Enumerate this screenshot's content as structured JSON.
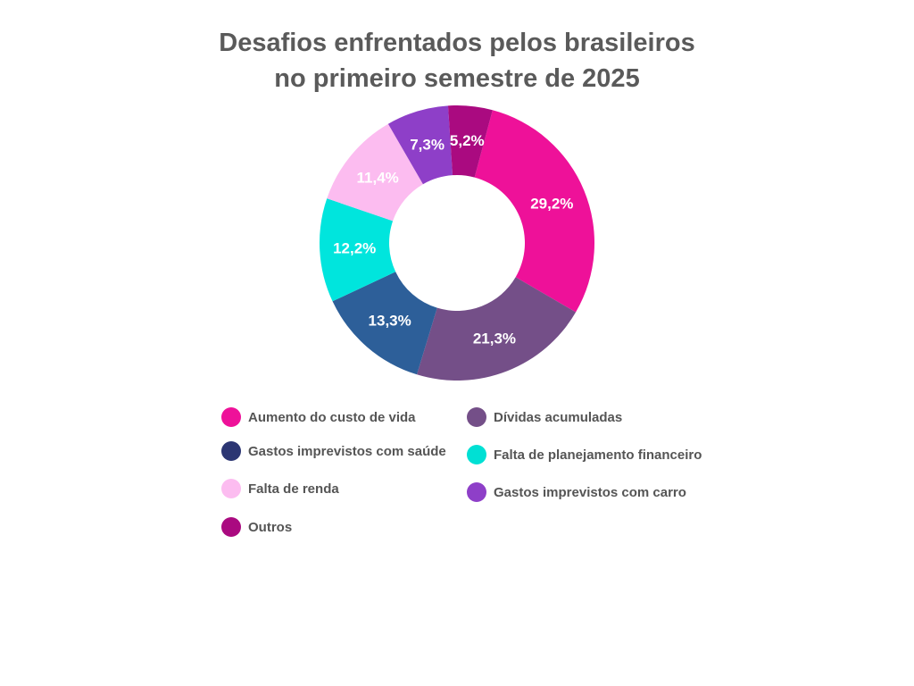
{
  "chart_data": {
    "type": "pie",
    "donut": true,
    "title_lines": [
      "Desafios enfrentados pelos brasileiros",
      "no primeiro semestre de 2025"
    ],
    "slices": [
      {
        "name": "Aumento do custo de vida",
        "value": 29.2,
        "label": "29,2%",
        "color": "#ee1199"
      },
      {
        "name": "Dívidas acumuladas",
        "value": 21.3,
        "label": "21,3%",
        "color": "#744f88"
      },
      {
        "name": "Gastos imprevistos com saúde",
        "value": 13.3,
        "label": "13,3%",
        "color": "#2d5f99"
      },
      {
        "name": "Falta de planejamento financeiro",
        "value": 12.2,
        "label": "12,2%",
        "color": "#00e5dd"
      },
      {
        "name": "Falta de renda",
        "value": 11.4,
        "label": "11,4%",
        "color": "#fcbcf0"
      },
      {
        "name": "Gastos imprevistos com carro",
        "value": 7.3,
        "label": "7,3%",
        "color": "#8e3fc8"
      },
      {
        "name": "Outros",
        "value": 5.2,
        "label": "5,2%",
        "color": "#aa0a80"
      }
    ],
    "legend": [
      {
        "name": "Aumento do custo de vida",
        "color": "#ee1199"
      },
      {
        "name": "Dívidas acumuladas",
        "color": "#744f88"
      },
      {
        "name": "Gastos imprevistos com saúde",
        "color": "#2c3673"
      },
      {
        "name": "Falta de planejamento financeiro",
        "color": "#00e0d4"
      },
      {
        "name": "Falta de renda",
        "color": "#fcbcf0"
      },
      {
        "name": "Gastos imprevistos com carro",
        "color": "#8e3fc8"
      },
      {
        "name": "Outros",
        "color": "#aa0a80"
      }
    ],
    "legend_position": "bottom"
  }
}
